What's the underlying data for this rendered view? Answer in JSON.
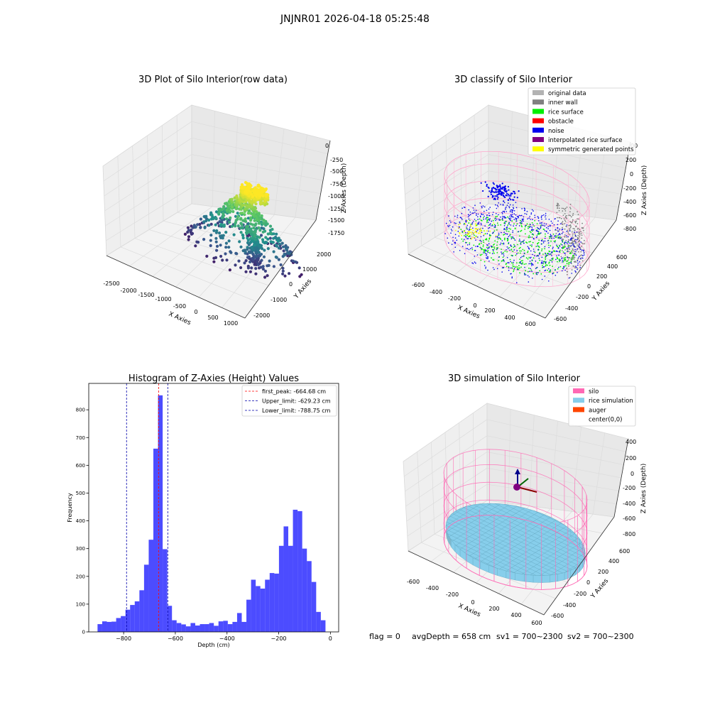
{
  "suptitle": "JNJNR01 2026-04-18 05:25:48",
  "footer": {
    "flag": "flag = 0",
    "avg": "avgDepth = 658 cm",
    "sv1": "sv1 = 700~2300",
    "sv2": "sv2 = 700~2300"
  },
  "chart_data": [
    {
      "type": "scatter",
      "title": "3D Plot of Silo Interior(row data)",
      "xlabel": "X Axies",
      "ylabel": "Y Axies",
      "zlabel": "Z Axies (Depth)",
      "x_ticks": [
        "-2500",
        "-2000",
        "-1500",
        "-1000",
        "-500",
        "0",
        "500",
        "1000"
      ],
      "y_ticks": [
        "-2000",
        "-1000",
        "0",
        "1000",
        "2000"
      ],
      "z_ticks": [
        "0",
        "-250",
        "-500",
        "-750",
        "-1000",
        "-1250",
        "-1500",
        "-1750"
      ],
      "xlim": [
        -2600,
        1200
      ],
      "ylim": [
        -2400,
        2400
      ],
      "zlim": [
        -1950,
        0
      ],
      "colormap": "viridis",
      "grid": true
    },
    {
      "type": "scatter",
      "title": "3D classify of Silo Interior",
      "xlabel": "X Axies",
      "ylabel": "Y Axies",
      "zlabel": "Z Axies (Depth)",
      "x_ticks": [
        "-600",
        "-400",
        "-200",
        "0",
        "200",
        "400",
        "600"
      ],
      "y_ticks": [
        "-600",
        "-400",
        "-200",
        "0",
        "200",
        "400",
        "600"
      ],
      "z_ticks": [
        "200",
        "0",
        "-200",
        "-400",
        "-600",
        "-800"
      ],
      "z_tick_top_partial": "00",
      "xlim": [
        -700,
        700
      ],
      "ylim": [
        -700,
        700
      ],
      "zlim": [
        -950,
        420
      ],
      "legend_position": "top-right",
      "legend": [
        {
          "label": "original data",
          "color": "#b3b3b3"
        },
        {
          "label": "inner wall",
          "color": "#808080"
        },
        {
          "label": "rice surface",
          "color": "#00ee00"
        },
        {
          "label": "obstacle",
          "color": "#ff0000"
        },
        {
          "label": "noise",
          "color": "#0000ee"
        },
        {
          "label": "interpolated rice surface",
          "color": "#800080"
        },
        {
          "label": "symmetric generated points",
          "color": "#ffff00"
        }
      ],
      "grid": true
    },
    {
      "type": "bar",
      "title": "Histogram of Z-Axies (Height) Values",
      "xlabel": "Depth (cm)",
      "ylabel": "Frequency",
      "bar_color": "#0000ff",
      "bin_width": 18,
      "bins": [
        {
          "x": -892,
          "count": 28
        },
        {
          "x": -874,
          "count": 38
        },
        {
          "x": -856,
          "count": 36
        },
        {
          "x": -838,
          "count": 37
        },
        {
          "x": -820,
          "count": 50
        },
        {
          "x": -802,
          "count": 57
        },
        {
          "x": -784,
          "count": 80
        },
        {
          "x": -766,
          "count": 97
        },
        {
          "x": -748,
          "count": 110
        },
        {
          "x": -730,
          "count": 150
        },
        {
          "x": -712,
          "count": 242
        },
        {
          "x": -694,
          "count": 332
        },
        {
          "x": -676,
          "count": 660
        },
        {
          "x": -658,
          "count": 852
        },
        {
          "x": -640,
          "count": 298
        },
        {
          "x": -622,
          "count": 94
        },
        {
          "x": -604,
          "count": 42
        },
        {
          "x": -586,
          "count": 32
        },
        {
          "x": -568,
          "count": 27
        },
        {
          "x": -550,
          "count": 20
        },
        {
          "x": -532,
          "count": 32
        },
        {
          "x": -514,
          "count": 23
        },
        {
          "x": -496,
          "count": 28
        },
        {
          "x": -478,
          "count": 28
        },
        {
          "x": -460,
          "count": 32
        },
        {
          "x": -442,
          "count": 22
        },
        {
          "x": -424,
          "count": 38
        },
        {
          "x": -406,
          "count": 40
        },
        {
          "x": -388,
          "count": 28
        },
        {
          "x": -370,
          "count": 36
        },
        {
          "x": -352,
          "count": 68
        },
        {
          "x": -334,
          "count": 36
        },
        {
          "x": -316,
          "count": 116
        },
        {
          "x": -298,
          "count": 188
        },
        {
          "x": -280,
          "count": 165
        },
        {
          "x": -262,
          "count": 156
        },
        {
          "x": -244,
          "count": 188
        },
        {
          "x": -226,
          "count": 212
        },
        {
          "x": -208,
          "count": 210
        },
        {
          "x": -190,
          "count": 310
        },
        {
          "x": -172,
          "count": 380
        },
        {
          "x": -154,
          "count": 310
        },
        {
          "x": -136,
          "count": 440
        },
        {
          "x": -118,
          "count": 435
        },
        {
          "x": -100,
          "count": 300
        },
        {
          "x": -82,
          "count": 255
        },
        {
          "x": -64,
          "count": 180
        },
        {
          "x": -46,
          "count": 72
        },
        {
          "x": -28,
          "count": 42
        }
      ],
      "xlim": [
        -935,
        32
      ],
      "ylim": [
        0,
        895
      ],
      "x_ticks": [
        -800,
        -600,
        -400,
        -200,
        0
      ],
      "y_ticks": [
        0,
        100,
        200,
        300,
        400,
        500,
        600,
        700,
        800
      ],
      "vlines": [
        {
          "x": -664.68,
          "color": "#ff0000",
          "label": "first_peak: -664.68 cm"
        },
        {
          "x": -629.23,
          "color": "#0000aa",
          "label": "Upper_limit: -629.23 cm"
        },
        {
          "x": -788.75,
          "color": "#0000aa",
          "label": "Lower_limit: -788.75 cm"
        }
      ],
      "legend_position": "top-right",
      "grid": false
    },
    {
      "type": "scatter",
      "title": "3D simulation of Silo Interior",
      "xlabel": "X Axies",
      "ylabel": "Y Axies",
      "zlabel": "Z Axies (Depth)",
      "x_ticks": [
        "-600",
        "-400",
        "-200",
        "0",
        "200",
        "400",
        "600"
      ],
      "y_ticks": [
        "-600",
        "-400",
        "-200",
        "0",
        "200",
        "400",
        "600"
      ],
      "z_ticks": [
        "400",
        "200",
        "0",
        "-200",
        "-400",
        "-600",
        "-800"
      ],
      "xlim": [
        -700,
        700
      ],
      "ylim": [
        -700,
        700
      ],
      "zlim": [
        -950,
        450
      ],
      "legend_position": "top-right",
      "legend": [
        {
          "label": "silo",
          "color": "#ff69b4"
        },
        {
          "label": "rice simulation",
          "color": "#87ceeb"
        },
        {
          "label": "auger",
          "color": "#ff4500"
        },
        {
          "label": "center(0,0)",
          "color": "#ffffff"
        }
      ],
      "grid": true
    }
  ]
}
